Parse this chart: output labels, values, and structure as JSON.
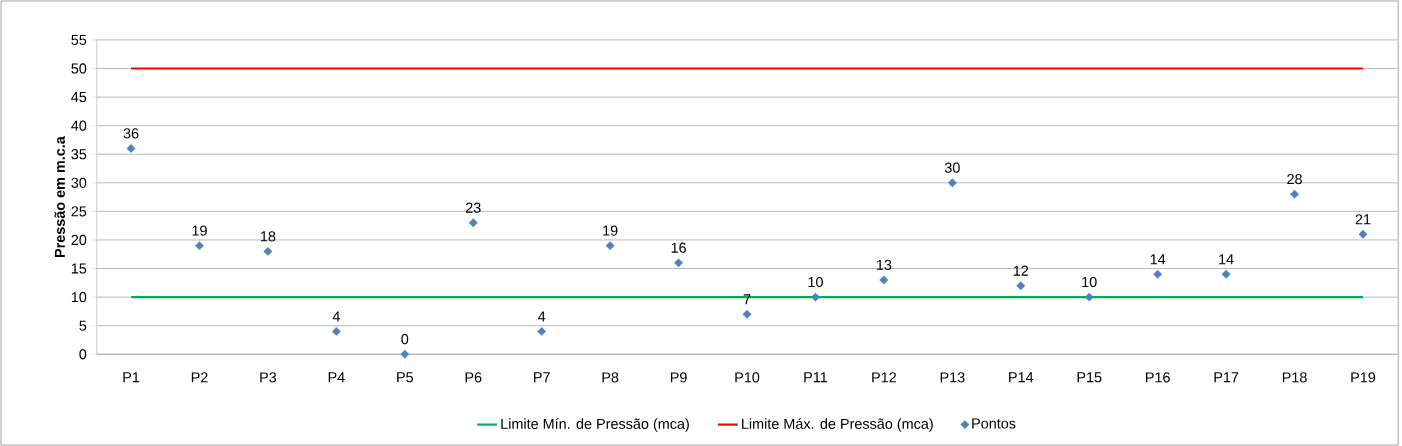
{
  "chart_data": {
    "type": "scatter",
    "ylabel": "Pressão em m.c.a",
    "categories": [
      "P1",
      "P2",
      "P3",
      "P4",
      "P5",
      "P6",
      "P7",
      "P8",
      "P9",
      "P10",
      "P11",
      "P12",
      "P13",
      "P14",
      "P15",
      "P16",
      "P17",
      "P18",
      "P19"
    ],
    "series": [
      {
        "name": "Limite Mín. de Pressão (mca)",
        "color": "#00b050",
        "type": "line",
        "marker": "none",
        "values": [
          10,
          10,
          10,
          10,
          10,
          10,
          10,
          10,
          10,
          10,
          10,
          10,
          10,
          10,
          10,
          10,
          10,
          10,
          10
        ]
      },
      {
        "name": "Limite Máx. de Pressão (mca)",
        "color": "#ff0000",
        "type": "line",
        "marker": "none",
        "values": [
          50,
          50,
          50,
          50,
          50,
          50,
          50,
          50,
          50,
          50,
          50,
          50,
          50,
          50,
          50,
          50,
          50,
          50,
          50
        ]
      },
      {
        "name": "Pontos",
        "color": "#4f81bd",
        "data_labels": true,
        "values": [
          36,
          19,
          18,
          4,
          0,
          23,
          4,
          19,
          16,
          7,
          10,
          13,
          30,
          12,
          10,
          14,
          14,
          28,
          21
        ]
      }
    ],
    "ylim": [
      0,
      55
    ],
    "yticks": [
      0,
      5,
      10,
      15,
      20,
      25,
      30,
      35,
      40,
      45,
      50,
      55
    ],
    "grid": "y",
    "legend": "bottom",
    "marker": "diamond",
    "line_style": "solid"
  }
}
